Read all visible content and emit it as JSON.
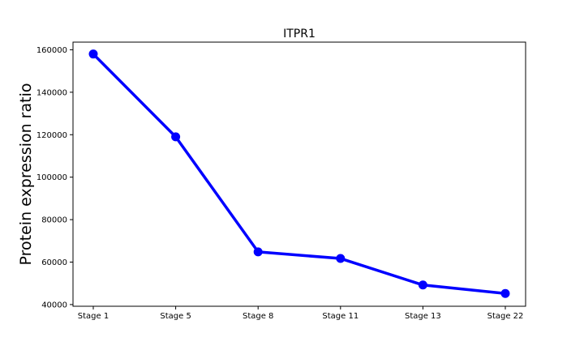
{
  "chart_data": {
    "type": "line",
    "title": "ITPR1",
    "xlabel": "",
    "ylabel": "Protein expression ratio",
    "categories": [
      "Stage 1",
      "Stage 5",
      "Stage 8",
      "Stage 11",
      "Stage 13",
      "Stage 22"
    ],
    "series": [
      {
        "values": [
          158000,
          119000,
          64800,
          61700,
          49200,
          45200
        ]
      }
    ],
    "ylim": [
      39200,
      163600
    ],
    "yticks": [
      40000,
      60000,
      80000,
      100000,
      120000,
      140000,
      160000
    ],
    "ytick_labels": [
      "40000",
      "60000",
      "80000",
      "100000",
      "120000",
      "140000",
      "160000"
    ],
    "grid": false,
    "line_color": "#0000ff",
    "marker_color": "#0000ff"
  }
}
